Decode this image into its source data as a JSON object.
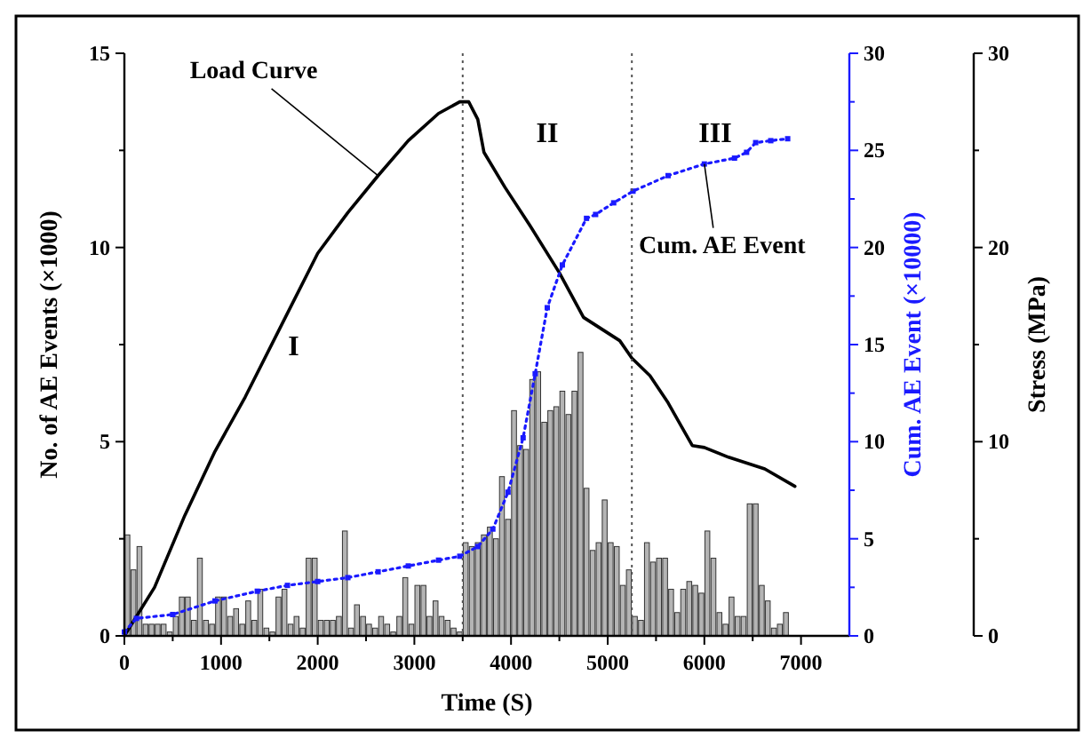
{
  "chart_data": {
    "type": "bar",
    "xlabel": "Time (S)",
    "ylabel": "No. of AE Events (×1000)",
    "y2label": "Cum. AE Event (×10000)",
    "y3label": "Stress (MPa)",
    "xlim": [
      0,
      7500
    ],
    "xticks": [
      0,
      {
        "value": 500,
        "label": null
      },
      1000,
      {
        "value": 1500,
        "label": null
      },
      2000,
      {
        "value": 2500,
        "label": null
      },
      3000,
      {
        "value": 3500,
        "label": null
      },
      4000,
      {
        "value": 4500,
        "label": null
      },
      5000,
      {
        "value": 5500,
        "label": null
      },
      6000,
      {
        "value": 6500,
        "label": null
      },
      7000
    ],
    "ylim": [
      0,
      15
    ],
    "yticks": [
      0,
      {
        "value": 2.5,
        "label": null
      },
      5,
      {
        "value": 7.5,
        "label": null
      },
      10,
      {
        "value": 12.5,
        "label": null
      },
      15
    ],
    "y2lim": [
      0,
      30
    ],
    "y2ticks": [
      0,
      {
        "value": 2.5,
        "label": null
      },
      5,
      {
        "value": 7.5,
        "label": null
      },
      10,
      {
        "value": 12.5,
        "label": null
      },
      15,
      {
        "value": 17.5,
        "label": null
      },
      20,
      {
        "value": 22.5,
        "label": null
      },
      25,
      {
        "value": 27.5,
        "label": null
      },
      30
    ],
    "y3lim": [
      0,
      30
    ],
    "y3ticks": [
      0,
      {
        "value": 5,
        "label": null
      },
      10,
      {
        "value": 15,
        "label": null
      },
      20,
      {
        "value": 25,
        "label": null
      },
      30
    ],
    "grid": false,
    "ref_lines": [
      {
        "axis": "x",
        "value": 3500,
        "line_style": "dotted",
        "color": "#555555"
      },
      {
        "axis": "x",
        "value": 5250,
        "line_style": "dotted",
        "color": "#555555"
      }
    ],
    "annotations": [
      "I",
      "II",
      "III"
    ],
    "series": [
      {
        "color": "#b4b4b4",
        "x": [
          31,
          94,
          156,
          219,
          281,
          344,
          406,
          469,
          531,
          594,
          656,
          719,
          781,
          844,
          906,
          969,
          1031,
          1094,
          1156,
          1219,
          1281,
          1344,
          1406,
          1469,
          1531,
          1594,
          1656,
          1719,
          1781,
          1844,
          1906,
          1969,
          2031,
          2094,
          2156,
          2219,
          2281,
          2344,
          2406,
          2469,
          2531,
          2594,
          2656,
          2719,
          2781,
          2844,
          2906,
          2969,
          3031,
          3094,
          3156,
          3219,
          3281,
          3344,
          3406,
          3469,
          3531,
          3594,
          3656,
          3719,
          3781,
          3844,
          3906,
          3969,
          4031,
          4094,
          4156,
          4219,
          4281,
          4344,
          4406,
          4468,
          4531,
          4594,
          4656,
          4719,
          4781,
          4844,
          4906,
          4969,
          5031,
          5094,
          5156,
          5219,
          5281,
          5344,
          5406,
          5469,
          5531,
          5594,
          5656,
          5719,
          5781,
          5844,
          5906,
          5969,
          6031,
          6094,
          6156,
          6219,
          6281,
          6344,
          6406,
          6469,
          6531,
          6594,
          6656,
          6719,
          6781,
          6844
        ],
        "values": [
          2.6,
          1.7,
          2.3,
          0.3,
          0.3,
          0.3,
          0.3,
          0.1,
          0.5,
          1.0,
          1.0,
          0.4,
          2.0,
          0.4,
          0.3,
          1.0,
          1.0,
          0.5,
          0.7,
          0.3,
          0.9,
          0.4,
          1.2,
          0.2,
          0.1,
          1.0,
          1.2,
          0.3,
          0.5,
          0.2,
          2.0,
          2.0,
          0.4,
          0.4,
          0.4,
          0.5,
          2.7,
          0.2,
          0.8,
          0.5,
          0.3,
          0.2,
          0.5,
          0.3,
          0.1,
          0.5,
          1.5,
          0.3,
          1.3,
          1.3,
          0.5,
          0.9,
          0.5,
          0.4,
          0.2,
          0.1,
          2.4,
          2.3,
          2.4,
          2.6,
          2.8,
          2.5,
          4.1,
          3.0,
          5.8,
          4.9,
          4.8,
          6.6,
          6.8,
          5.5,
          5.8,
          5.9,
          6.3,
          5.7,
          6.3,
          7.3,
          3.8,
          2.2,
          2.4,
          3.5,
          2.4,
          2.3,
          1.3,
          1.7,
          0.5,
          0.4,
          2.4,
          1.9,
          2.0,
          2.0,
          1.2,
          0.6,
          1.2,
          1.4,
          1.3,
          1.1,
          2.7,
          2.0,
          0.6,
          0.3,
          1.0,
          0.5,
          0.5,
          3.4,
          3.4,
          1.3,
          0.9,
          0.2,
          0.3,
          0.6
        ]
      },
      {
        "type": "line",
        "name": "Load Curve",
        "axis": "y3",
        "color": "#000000",
        "marker": "none",
        "line_style": "solid",
        "x": [
          0,
          312,
          625,
          937,
          1250,
          1625,
          2000,
          2312,
          2625,
          2937,
          3250,
          3470,
          3562,
          3656,
          3720,
          3937,
          4187,
          4500,
          4750,
          5125,
          5250,
          5437,
          5625,
          5875,
          6000,
          6250,
          6625,
          6937
        ],
        "values": [
          0,
          2.5,
          6.2,
          9.5,
          12.3,
          16.0,
          19.7,
          21.8,
          23.7,
          25.5,
          26.9,
          27.5,
          27.5,
          26.6,
          24.9,
          23.1,
          21.2,
          18.7,
          16.4,
          15.2,
          14.3,
          13.4,
          12.0,
          9.8,
          9.7,
          9.2,
          8.6,
          7.7
        ]
      },
      {
        "type": "line",
        "name": "Cum. AE Event",
        "axis": "y2",
        "color": "#1a1aff",
        "marker": "square",
        "line_style": "dotted",
        "x": [
          0,
          125,
          500,
          937,
          1375,
          1687,
          2000,
          2312,
          2625,
          2937,
          3250,
          3470,
          3656,
          3812,
          3969,
          4125,
          4250,
          4375,
          4531,
          4781,
          4875,
          5062,
          5262,
          5625,
          6000,
          6312,
          6437,
          6531,
          6687,
          6862
        ],
        "values": [
          0.2,
          0.9,
          1.1,
          1.8,
          2.3,
          2.6,
          2.8,
          3.0,
          3.3,
          3.6,
          3.9,
          4.1,
          4.6,
          5.5,
          7.4,
          10.2,
          13.5,
          16.9,
          19.1,
          21.5,
          21.7,
          22.3,
          22.9,
          23.7,
          24.3,
          24.6,
          24.9,
          25.4,
          25.5,
          25.6
        ]
      }
    ]
  }
}
